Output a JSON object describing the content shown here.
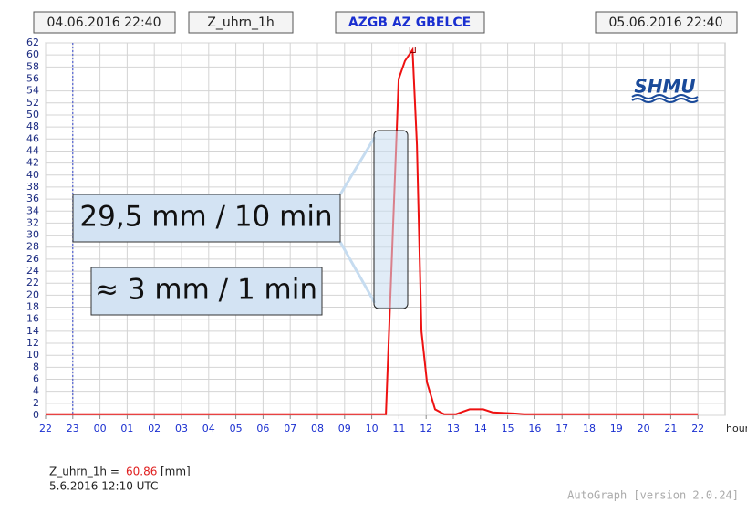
{
  "header": {
    "start": "04.06.2016 22:40",
    "variable": "Z_uhrn_1h",
    "station": "AZGB AZ GBELCE",
    "end": "05.06.2016 22:40"
  },
  "logo": "SHMU",
  "chart_data": {
    "type": "line",
    "x_label": "hour",
    "xlim": [
      0,
      25
    ],
    "xticks": [
      {
        "value": 0,
        "label": "22"
      },
      {
        "value": 1,
        "label": "23"
      },
      {
        "value": 2,
        "label": "00"
      },
      {
        "value": 3,
        "label": "01"
      },
      {
        "value": 4,
        "label": "02"
      },
      {
        "value": 5,
        "label": "03"
      },
      {
        "value": 6,
        "label": "04"
      },
      {
        "value": 7,
        "label": "05"
      },
      {
        "value": 8,
        "label": "06"
      },
      {
        "value": 9,
        "label": "07"
      },
      {
        "value": 10,
        "label": "08"
      },
      {
        "value": 11,
        "label": "09"
      },
      {
        "value": 12,
        "label": "10"
      },
      {
        "value": 13,
        "label": "11"
      },
      {
        "value": 14,
        "label": "12"
      },
      {
        "value": 15,
        "label": "13"
      },
      {
        "value": 16,
        "label": "14"
      },
      {
        "value": 17,
        "label": "15"
      },
      {
        "value": 18,
        "label": "16"
      },
      {
        "value": 19,
        "label": "17"
      },
      {
        "value": 20,
        "label": "18"
      },
      {
        "value": 21,
        "label": "19"
      },
      {
        "value": 22,
        "label": "20"
      },
      {
        "value": 23,
        "label": "21"
      },
      {
        "value": 24,
        "label": "22"
      }
    ],
    "ylim": [
      0,
      62
    ],
    "yticks": [
      0,
      2,
      4,
      6,
      8,
      10,
      12,
      14,
      16,
      18,
      20,
      22,
      24,
      26,
      28,
      30,
      32,
      34,
      36,
      38,
      40,
      42,
      44,
      46,
      48,
      50,
      52,
      54,
      56,
      58,
      60,
      62
    ],
    "grid": true,
    "series": [
      {
        "color": "#ee1111",
        "x": [
          0,
          12.52,
          12.99,
          13.22,
          13.5,
          13.66,
          13.83,
          14.03,
          14.33,
          14.66,
          15.1,
          15.6,
          16.1,
          16.44,
          17.28,
          17.6,
          24
        ],
        "values": [
          0.2,
          0.2,
          56,
          59,
          60.86,
          45,
          14,
          5.5,
          1,
          0.2,
          0.2,
          1,
          1,
          0.5,
          0.3,
          0.2,
          0.2
        ]
      }
    ],
    "annotations": [
      "29,5 mm / 10 min",
      "≈ 3 mm / 1 min"
    ]
  },
  "footer": {
    "label": "Z_uhrn_1h =",
    "value": 60.86,
    "unit": "[mm]",
    "timestamp": "5.6.2016 12:10 UTC",
    "credit": "AutoGraph [version 2.0.24]"
  }
}
